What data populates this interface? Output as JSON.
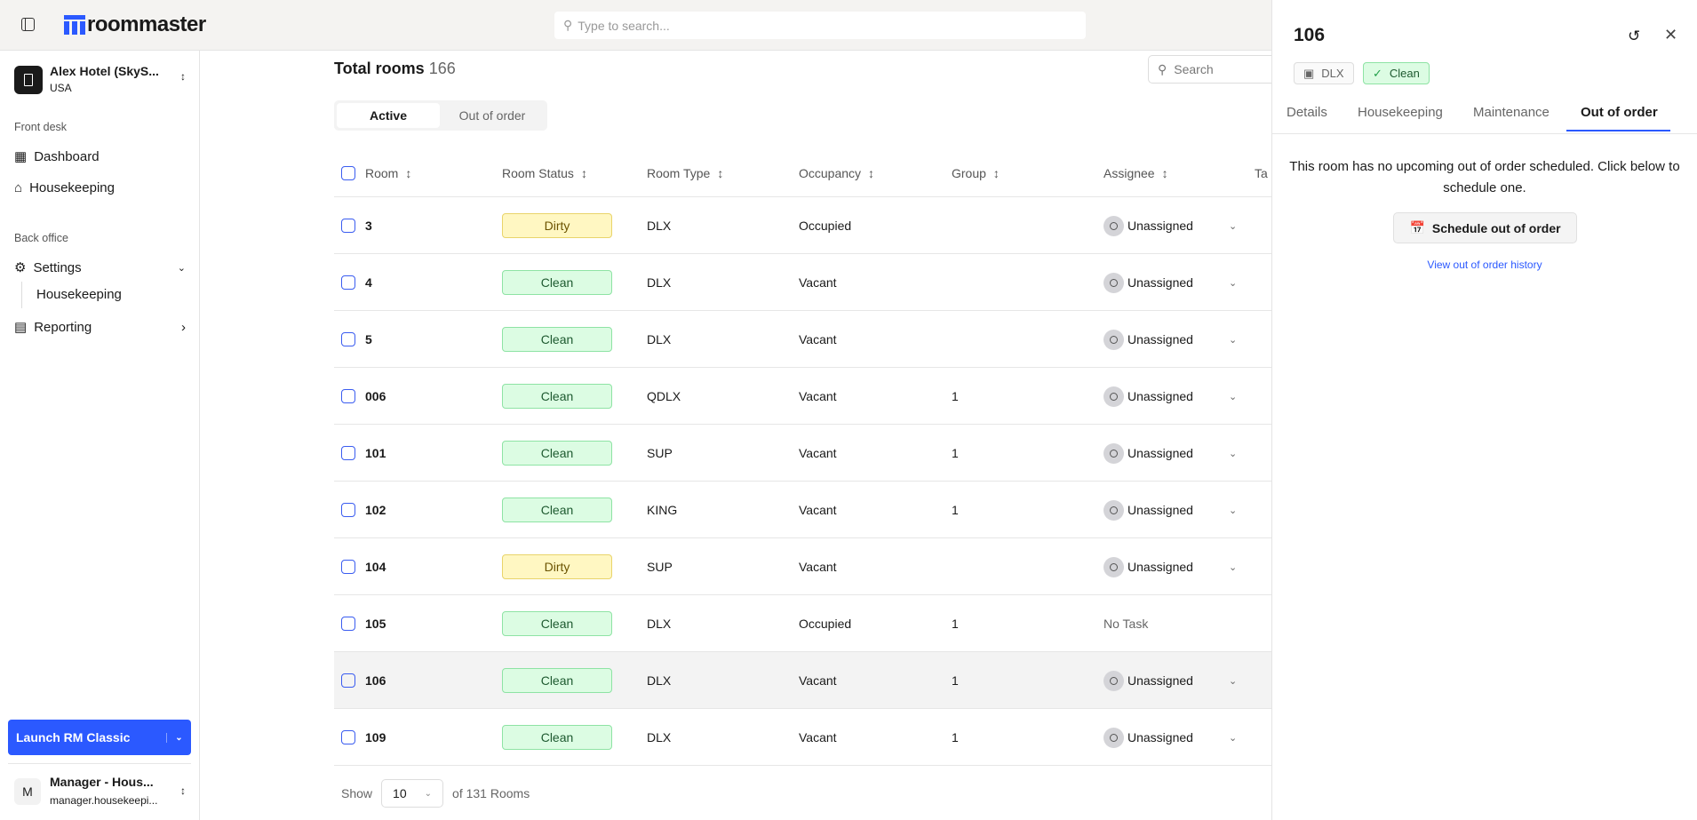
{
  "topbar": {
    "logo": "roommaster",
    "search_placeholder": "Type to search..."
  },
  "sidebar": {
    "hotel_name": "Alex Hotel (SkyS...",
    "hotel_country": "USA",
    "section_front": "Front desk",
    "dashboard": "Dashboard",
    "housekeeping": "Housekeeping",
    "section_back": "Back office",
    "settings": "Settings",
    "settings_housekeeping": "Housekeeping",
    "reporting": "Reporting",
    "launch": "Launch RM Classic",
    "user_initial": "M",
    "user_name": "Manager - Hous...",
    "user_email": "manager.housekeepi..."
  },
  "main": {
    "title": "Total rooms",
    "count": "166",
    "search_placeholder": "Search",
    "tabs": [
      "Active",
      "Out of order"
    ],
    "columns": [
      "Room",
      "Room Status",
      "Room Type",
      "Occupancy",
      "Group",
      "Assignee",
      "Ta"
    ],
    "rows": [
      {
        "room": "3",
        "status": "Dirty",
        "type": "DLX",
        "occupancy": "Occupied",
        "group": "",
        "assignee": "Unassigned"
      },
      {
        "room": "4",
        "status": "Clean",
        "type": "DLX",
        "occupancy": "Vacant",
        "group": "",
        "assignee": "Unassigned"
      },
      {
        "room": "5",
        "status": "Clean",
        "type": "DLX",
        "occupancy": "Vacant",
        "group": "",
        "assignee": "Unassigned"
      },
      {
        "room": "006",
        "status": "Clean",
        "type": "QDLX",
        "occupancy": "Vacant",
        "group": "1",
        "assignee": "Unassigned"
      },
      {
        "room": "101",
        "status": "Clean",
        "type": "SUP",
        "occupancy": "Vacant",
        "group": "1",
        "assignee": "Unassigned"
      },
      {
        "room": "102",
        "status": "Clean",
        "type": "KING",
        "occupancy": "Vacant",
        "group": "1",
        "assignee": "Unassigned"
      },
      {
        "room": "104",
        "status": "Dirty",
        "type": "SUP",
        "occupancy": "Vacant",
        "group": "",
        "assignee": "Unassigned"
      },
      {
        "room": "105",
        "status": "Clean",
        "type": "DLX",
        "occupancy": "Occupied",
        "group": "1",
        "assignee": "No Task"
      },
      {
        "room": "106",
        "status": "Clean",
        "type": "DLX",
        "occupancy": "Vacant",
        "group": "1",
        "assignee": "Unassigned"
      },
      {
        "room": "109",
        "status": "Clean",
        "type": "DLX",
        "occupancy": "Vacant",
        "group": "1",
        "assignee": "Unassigned"
      }
    ],
    "pager": {
      "show": "Show",
      "value": "10",
      "of": "of 131 Rooms"
    }
  },
  "panel": {
    "room": "106",
    "type": "DLX",
    "status": "Clean",
    "tabs": [
      "Details",
      "Housekeeping",
      "Maintenance",
      "Out of order"
    ],
    "message": "This room has no upcoming out of order scheduled. Click below to schedule one.",
    "schedule": "Schedule out of order",
    "history_link": "View out of order history"
  },
  "colors": {
    "accent": "#2b59ff",
    "clean": "#dcfce3",
    "dirty": "#fff7c2"
  }
}
